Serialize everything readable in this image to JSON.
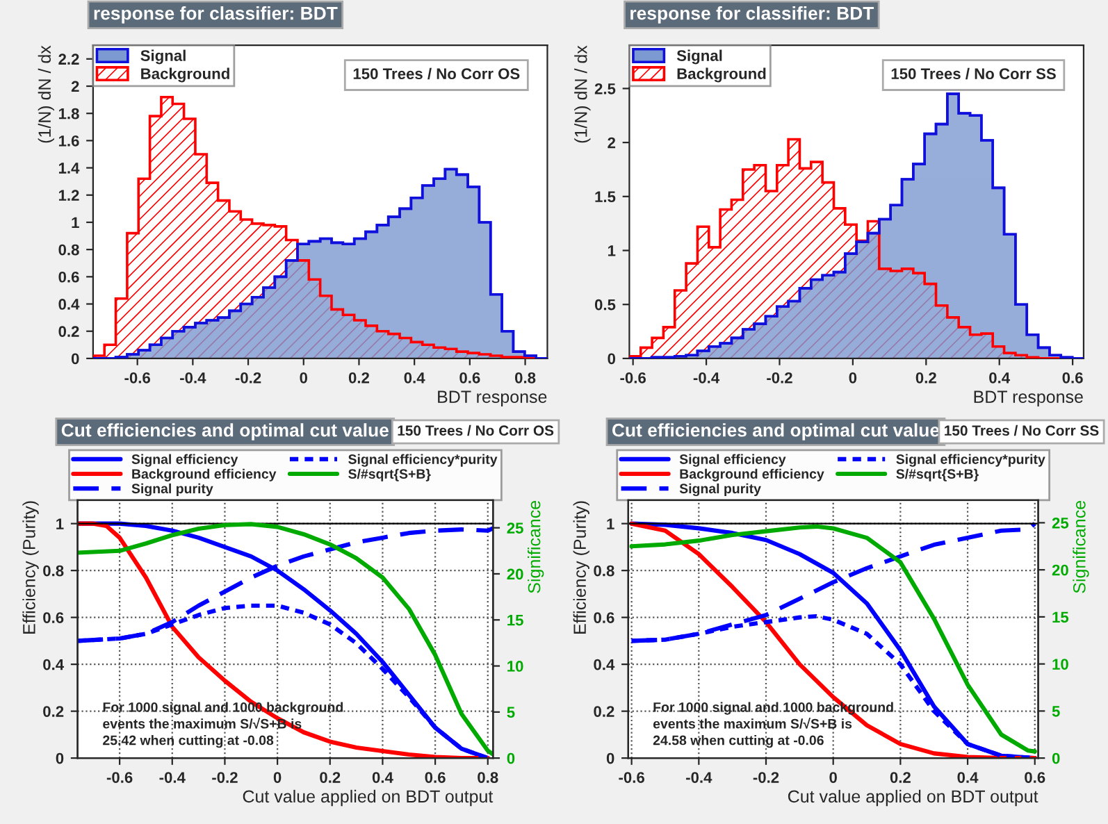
{
  "chart_data": [
    {
      "type": "histogram",
      "title": "response for classifier: BDT",
      "xlabel": "BDT response",
      "ylabel": "(1/N) dN / dx",
      "bins": [
        -0.76,
        -0.719,
        -0.678,
        -0.637,
        -0.596,
        -0.555,
        -0.514,
        -0.473,
        -0.432,
        -0.391,
        -0.35,
        -0.309,
        -0.268,
        -0.227,
        -0.186,
        -0.145,
        -0.104,
        -0.063,
        -0.022,
        0.019,
        0.06,
        0.101,
        0.142,
        0.183,
        0.224,
        0.265,
        0.306,
        0.347,
        0.388,
        0.429,
        0.47,
        0.511,
        0.552,
        0.593,
        0.634,
        0.675,
        0.716,
        0.757,
        0.798,
        0.839,
        0.88
      ],
      "series": [
        {
          "name": "Signal",
          "color": "#7d99d1",
          "values": [
            0,
            0,
            0.01,
            0.03,
            0.06,
            0.1,
            0.15,
            0.2,
            0.23,
            0.26,
            0.28,
            0.3,
            0.35,
            0.4,
            0.45,
            0.52,
            0.6,
            0.72,
            0.84,
            0.86,
            0.88,
            0.85,
            0.84,
            0.88,
            0.93,
            0.98,
            1.04,
            1.1,
            1.18,
            1.27,
            1.32,
            1.39,
            1.35,
            1.26,
            1.0,
            0.47,
            0.2,
            0.05,
            0.02,
            0
          ]
        },
        {
          "name": "Background",
          "color": "#ff0000",
          "values": [
            0.02,
            0.1,
            0.44,
            0.92,
            1.32,
            1.78,
            1.92,
            1.87,
            1.76,
            1.5,
            1.29,
            1.16,
            1.08,
            1.02,
            0.99,
            0.98,
            0.97,
            0.87,
            0.72,
            0.58,
            0.46,
            0.36,
            0.32,
            0.28,
            0.24,
            0.2,
            0.18,
            0.15,
            0.12,
            0.1,
            0.08,
            0.07,
            0.05,
            0.04,
            0.03,
            0.02,
            0.01,
            0.01,
            0,
            0
          ]
        }
      ],
      "xlim": [
        -0.76,
        0.88
      ],
      "xticks": [
        -0.6,
        -0.4,
        -0.2,
        0,
        0.2,
        0.4,
        0.6,
        0.8
      ],
      "ylim": [
        0,
        2.3
      ],
      "yticks": [
        0,
        0.2,
        0.4,
        0.6,
        0.8,
        1,
        1.2,
        1.4,
        1.6,
        1.8,
        2,
        2.2
      ],
      "legend": "top left",
      "grid": false,
      "annotations": [
        "150 Trees / No Corr OS"
      ]
    },
    {
      "type": "histogram",
      "title": "response for classifier: BDT",
      "xlabel": "BDT response",
      "ylabel": "(1/N) dN / dx",
      "bins": [
        -0.61,
        -0.579,
        -0.548,
        -0.517,
        -0.486,
        -0.455,
        -0.424,
        -0.393,
        -0.362,
        -0.331,
        -0.3,
        -0.269,
        -0.238,
        -0.207,
        -0.176,
        -0.145,
        -0.114,
        -0.083,
        -0.052,
        -0.021,
        0.01,
        0.041,
        0.072,
        0.103,
        0.134,
        0.165,
        0.196,
        0.227,
        0.258,
        0.289,
        0.32,
        0.351,
        0.382,
        0.413,
        0.444,
        0.475,
        0.506,
        0.537,
        0.568,
        0.599,
        0.63
      ],
      "series": [
        {
          "name": "Signal",
          "color": "#7d99d1",
          "values": [
            0,
            0,
            0.01,
            0.01,
            0.02,
            0.03,
            0.07,
            0.11,
            0.14,
            0.19,
            0.27,
            0.32,
            0.39,
            0.48,
            0.53,
            0.65,
            0.73,
            0.77,
            0.8,
            0.97,
            1.08,
            1.16,
            1.29,
            1.42,
            1.66,
            1.8,
            2.08,
            2.17,
            2.45,
            2.27,
            2.25,
            2.02,
            1.58,
            1.15,
            0.5,
            0.22,
            0.1,
            0.03,
            0.01,
            0
          ]
        },
        {
          "name": "Background",
          "color": "#ff0000",
          "values": [
            0.02,
            0.1,
            0.19,
            0.29,
            0.63,
            0.88,
            1.22,
            1.03,
            1.38,
            1.47,
            1.75,
            1.79,
            1.55,
            1.79,
            2.03,
            1.76,
            1.82,
            1.63,
            1.39,
            1.24,
            1.09,
            1.27,
            0.83,
            0.81,
            0.83,
            0.79,
            0.69,
            0.49,
            0.38,
            0.29,
            0.22,
            0.23,
            0.11,
            0.05,
            0.03,
            0.01,
            0,
            0,
            0,
            0
          ]
        }
      ],
      "xlim": [
        -0.61,
        0.63
      ],
      "xticks": [
        -0.6,
        -0.4,
        -0.2,
        0,
        0.2,
        0.4,
        0.6
      ],
      "ylim": [
        0,
        2.9
      ],
      "yticks": [
        0,
        0.5,
        1,
        1.5,
        2,
        2.5
      ],
      "legend": "top left",
      "grid": false,
      "annotations": [
        "150 Trees / No Corr SS"
      ]
    },
    {
      "type": "line",
      "title": "Cut efficiencies and optimal cut value",
      "xlabel": "Cut value applied on BDT output",
      "ylabel": "Efficiency (Purity)",
      "y2label": "Significance",
      "series": [
        {
          "name": "Signal efficiency",
          "color": "#0000ff",
          "line_style": "solid",
          "x": [
            -0.76,
            -0.6,
            -0.5,
            -0.4,
            -0.3,
            -0.2,
            -0.1,
            0,
            0.1,
            0.2,
            0.3,
            0.4,
            0.5,
            0.6,
            0.7,
            0.8
          ],
          "values": [
            1,
            1.0,
            0.99,
            0.97,
            0.94,
            0.9,
            0.86,
            0.8,
            0.72,
            0.63,
            0.53,
            0.41,
            0.27,
            0.13,
            0.04,
            0
          ]
        },
        {
          "name": "Background efficiency",
          "color": "#ff0000",
          "line_style": "solid",
          "x": [
            -0.76,
            -0.7,
            -0.65,
            -0.6,
            -0.5,
            -0.4,
            -0.3,
            -0.2,
            -0.1,
            0,
            0.1,
            0.2,
            0.3,
            0.4,
            0.5,
            0.6,
            0.7,
            0.8
          ],
          "values": [
            1,
            1.0,
            0.99,
            0.94,
            0.77,
            0.56,
            0.43,
            0.33,
            0.24,
            0.17,
            0.11,
            0.07,
            0.045,
            0.03,
            0.015,
            0.005,
            0,
            0
          ]
        },
        {
          "name": "Signal purity",
          "color": "#0000ff",
          "line_style": "dashed",
          "x": [
            -0.76,
            -0.6,
            -0.5,
            -0.4,
            -0.3,
            -0.2,
            -0.1,
            0,
            0.1,
            0.2,
            0.3,
            0.4,
            0.5,
            0.6,
            0.7,
            0.8,
            0.82
          ],
          "values": [
            0.5,
            0.51,
            0.53,
            0.58,
            0.65,
            0.71,
            0.77,
            0.82,
            0.86,
            0.89,
            0.92,
            0.94,
            0.96,
            0.97,
            0.975,
            0.97,
            0.98
          ]
        },
        {
          "name": "Signal efficiency*purity",
          "color": "#0000ff",
          "line_style": "dotted",
          "x": [
            -0.76,
            -0.6,
            -0.5,
            -0.4,
            -0.3,
            -0.2,
            -0.1,
            0,
            0.1,
            0.2,
            0.3,
            0.4,
            0.5,
            0.6,
            0.7,
            0.8
          ],
          "values": [
            0.5,
            0.51,
            0.53,
            0.57,
            0.61,
            0.64,
            0.65,
            0.65,
            0.62,
            0.57,
            0.49,
            0.38,
            0.26,
            0.13,
            0.04,
            0
          ]
        },
        {
          "name": "S/#sqrt{S+B}",
          "color": "#00aa00",
          "line_style": "solid",
          "axis": "y2",
          "x": [
            -0.76,
            -0.6,
            -0.5,
            -0.4,
            -0.3,
            -0.2,
            -0.1,
            0,
            0.1,
            0.2,
            0.3,
            0.4,
            0.5,
            0.6,
            0.7,
            0.8,
            0.82
          ],
          "values": [
            22.3,
            22.5,
            23.3,
            24.2,
            24.9,
            25.3,
            25.4,
            25.1,
            24.3,
            23.2,
            21.7,
            19.6,
            16.2,
            11.2,
            4.8,
            0.8,
            0.4
          ]
        }
      ],
      "xlim": [
        -0.76,
        0.82
      ],
      "xticks": [
        -0.6,
        -0.4,
        -0.2,
        0,
        0.2,
        0.4,
        0.6,
        0.8
      ],
      "ylim": [
        0,
        1.1
      ],
      "yticks": [
        0,
        0.2,
        0.4,
        0.6,
        0.8,
        1
      ],
      "y2lim": [
        0,
        28
      ],
      "y2ticks": [
        0,
        5,
        10,
        15,
        20,
        25
      ],
      "ref_lines": [
        {
          "axis": "y",
          "value": 1,
          "color": "#000000"
        }
      ],
      "legend": "top",
      "grid": true,
      "annotations": [
        "150 Trees / No Corr OS",
        "For 1000 signal and 1000 background\nevents the maximum S/√S+B is\n25.42 when cutting at -0.08"
      ]
    },
    {
      "type": "line",
      "title": "Cut efficiencies and optimal cut value",
      "xlabel": "Cut value applied on BDT output",
      "ylabel": "Efficiency (Purity)",
      "y2label": "Significance",
      "series": [
        {
          "name": "Signal efficiency",
          "color": "#0000ff",
          "line_style": "solid",
          "x": [
            -0.6,
            -0.5,
            -0.4,
            -0.3,
            -0.2,
            -0.1,
            0,
            0.1,
            0.2,
            0.3,
            0.4,
            0.5,
            0.6
          ],
          "values": [
            1.0,
            0.995,
            0.98,
            0.96,
            0.93,
            0.87,
            0.79,
            0.66,
            0.46,
            0.22,
            0.06,
            0.01,
            0
          ]
        },
        {
          "name": "Background efficiency",
          "color": "#ff0000",
          "line_style": "solid",
          "x": [
            -0.6,
            -0.5,
            -0.4,
            -0.3,
            -0.2,
            -0.1,
            0,
            0.1,
            0.2,
            0.3,
            0.4,
            0.5,
            0.6
          ],
          "values": [
            1.0,
            0.97,
            0.87,
            0.73,
            0.58,
            0.4,
            0.26,
            0.14,
            0.06,
            0.02,
            0.005,
            0,
            0
          ]
        },
        {
          "name": "Signal purity",
          "color": "#0000ff",
          "line_style": "dashed",
          "x": [
            -0.6,
            -0.5,
            -0.4,
            -0.3,
            -0.2,
            -0.1,
            0,
            0.1,
            0.2,
            0.3,
            0.4,
            0.5,
            0.58,
            0.6
          ],
          "values": [
            0.5,
            0.505,
            0.53,
            0.57,
            0.61,
            0.68,
            0.75,
            0.81,
            0.86,
            0.91,
            0.94,
            0.97,
            0.975,
            1.0
          ]
        },
        {
          "name": "Signal efficiency*purity",
          "color": "#0000ff",
          "line_style": "dotted",
          "x": [
            -0.6,
            -0.5,
            -0.4,
            -0.3,
            -0.2,
            -0.1,
            -0.05,
            0,
            0.1,
            0.2,
            0.3,
            0.4,
            0.5,
            0.6
          ],
          "values": [
            0.5,
            0.505,
            0.53,
            0.56,
            0.58,
            0.6,
            0.605,
            0.59,
            0.53,
            0.4,
            0.2,
            0.06,
            0.01,
            0
          ]
        },
        {
          "name": "S/#sqrt{S+B}",
          "color": "#00aa00",
          "line_style": "solid",
          "axis": "y2",
          "x": [
            -0.6,
            -0.5,
            -0.4,
            -0.3,
            -0.2,
            -0.1,
            -0.05,
            0,
            0.1,
            0.2,
            0.3,
            0.4,
            0.5,
            0.58,
            0.6
          ],
          "values": [
            22.5,
            22.7,
            23.1,
            23.7,
            24.1,
            24.5,
            24.6,
            24.4,
            23.4,
            20.8,
            14.8,
            7.8,
            2.5,
            0.8,
            0.7
          ]
        }
      ],
      "xlim": [
        -0.61,
        0.61
      ],
      "xticks": [
        -0.6,
        -0.4,
        -0.2,
        0,
        0.2,
        0.4,
        0.6
      ],
      "ylim": [
        0,
        1.1
      ],
      "yticks": [
        0,
        0.2,
        0.4,
        0.6,
        0.8,
        1
      ],
      "y2lim": [
        0,
        27.4
      ],
      "y2ticks": [
        0,
        5,
        10,
        15,
        20,
        25
      ],
      "ref_lines": [
        {
          "axis": "y",
          "value": 1,
          "color": "#000000"
        }
      ],
      "legend": "top",
      "grid": true,
      "annotations": [
        "150 Trees / No Corr SS",
        "For 1000 signal and 1000 background\nevents the maximum S/√S+B is\n24.58 when cutting at -0.06"
      ]
    }
  ]
}
